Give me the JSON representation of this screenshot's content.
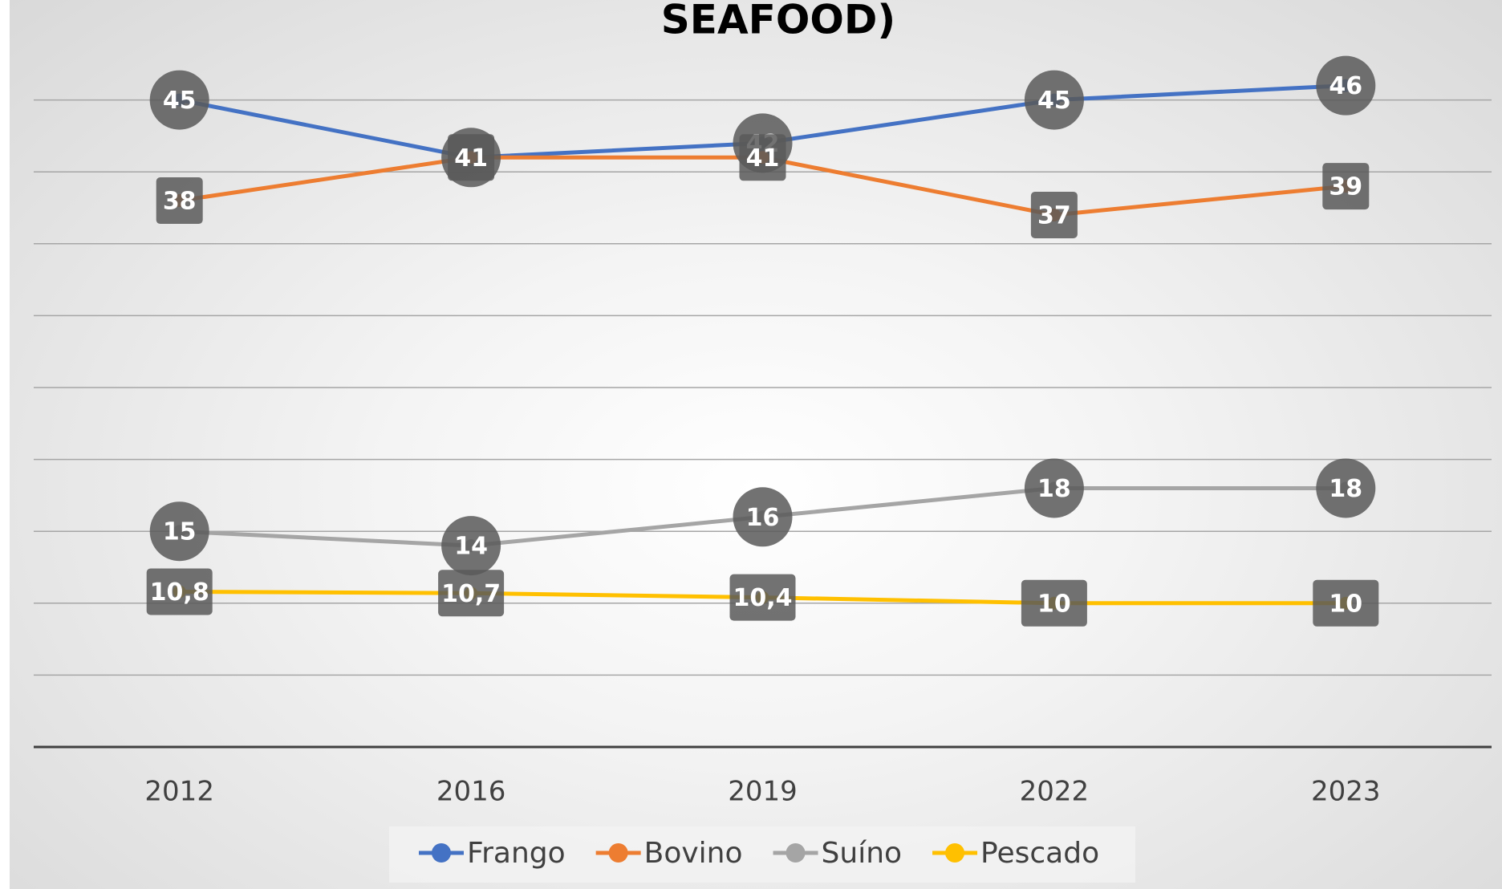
{
  "chart_data": {
    "type": "line",
    "title": "SEAFOOD)",
    "categories": [
      "2012",
      "2016",
      "2019",
      "2022",
      "2023"
    ],
    "series": [
      {
        "name": "Frango",
        "color": "#4472c4",
        "values": [
          45,
          41,
          42,
          45,
          46
        ]
      },
      {
        "name": "Bovino",
        "color": "#ed7d31",
        "values": [
          38,
          41,
          41,
          37,
          39
        ]
      },
      {
        "name": "Suíno",
        "color": "#a5a5a5",
        "values": [
          15,
          14,
          16,
          18,
          18
        ]
      },
      {
        "name": "Pescado",
        "color": "#ffc000",
        "values": [
          10.8,
          10.7,
          10.4,
          10,
          10
        ],
        "value_labels": [
          "10,8",
          "10,7",
          "10,4",
          "10",
          "10"
        ]
      }
    ],
    "ylim": [
      0,
      50
    ],
    "yticks": [
      5,
      10,
      15,
      20,
      25,
      30,
      35,
      40,
      45
    ],
    "grid": true,
    "legend": "bottom"
  }
}
